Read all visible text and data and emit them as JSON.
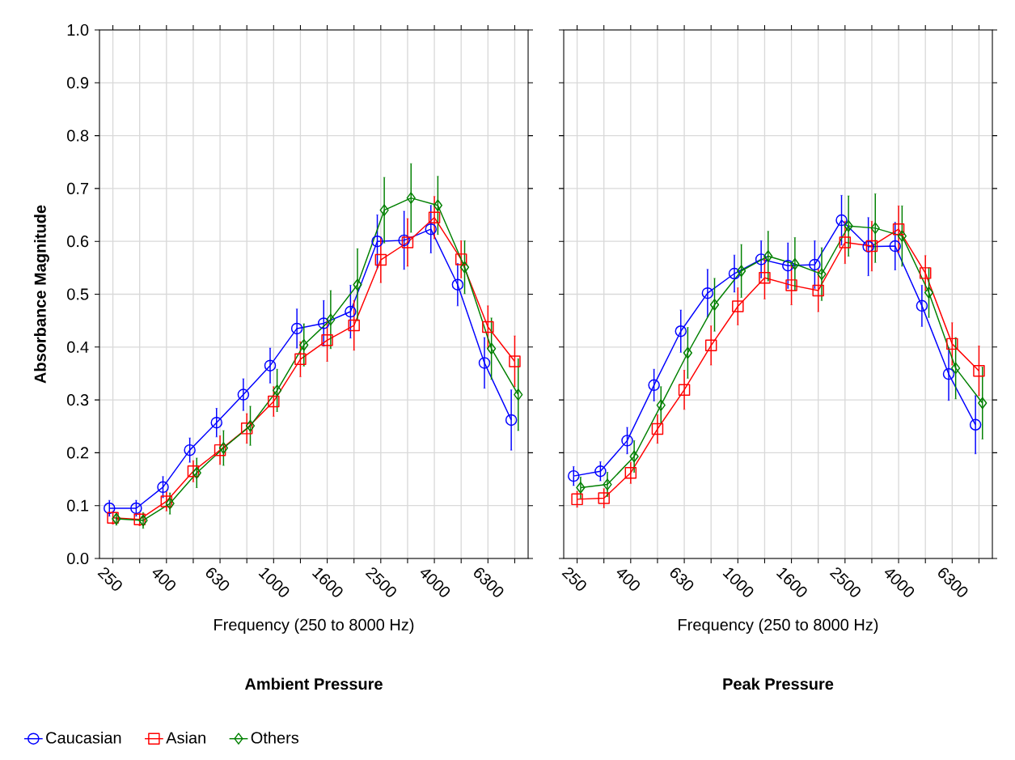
{
  "chart_data": [
    {
      "type": "line",
      "title": "**Ambient Pressure**",
      "xlabel": "Frequency (250 to 8000 Hz)",
      "ylabel": "Absorbance Magnitude",
      "categories": [
        "250",
        null,
        "400",
        null,
        "630",
        null,
        "1000",
        null,
        "1600",
        null,
        "2500",
        null,
        "4000",
        null,
        "6300",
        null
      ],
      "ylim": [
        0,
        1
      ],
      "yticks": [
        {
          "value": 0,
          "label": "0.0"
        },
        0.1,
        0.2,
        0.3,
        0.4,
        0.5,
        0.6,
        0.7,
        0.8,
        0.9,
        {
          "value": 1,
          "label": "1.0"
        }
      ],
      "grid": true,
      "legend": "bottom left",
      "line_style": "solid",
      "series": [
        {
          "name": "Caucasian",
          "color": "#0000ff",
          "marker": "circle",
          "values": [
            0.095,
            0.095,
            0.135,
            0.205,
            0.257,
            0.31,
            0.365,
            0.435,
            0.445,
            0.467,
            0.6,
            0.602,
            0.623,
            0.518,
            0.37,
            0.262
          ],
          "errors": [
            0.015,
            0.015,
            0.02,
            0.023,
            0.027,
            0.03,
            0.033,
            0.037,
            0.043,
            0.05,
            0.05,
            0.055,
            0.045,
            0.04,
            0.048,
            0.057
          ]
        },
        {
          "name": "Asian",
          "color": "#ff0000",
          "marker": "square",
          "values": [
            0.077,
            0.074,
            0.108,
            0.165,
            0.205,
            0.246,
            0.297,
            0.377,
            0.413,
            0.441,
            0.565,
            0.598,
            0.645,
            0.566,
            0.438,
            0.373
          ],
          "errors": [
            0.012,
            0.012,
            0.018,
            0.02,
            0.027,
            0.028,
            0.028,
            0.033,
            0.04,
            0.047,
            0.043,
            0.045,
            0.04,
            0.035,
            0.04,
            0.048
          ]
        },
        {
          "name": "Others",
          "color": "#008000",
          "marker": "diamond",
          "values": [
            0.075,
            0.072,
            0.104,
            0.162,
            0.209,
            0.251,
            0.318,
            0.404,
            0.452,
            0.518,
            0.659,
            0.682,
            0.668,
            0.551,
            0.397,
            0.31
          ],
          "errors": [
            0.012,
            0.015,
            0.02,
            0.028,
            0.033,
            0.037,
            0.04,
            0.04,
            0.055,
            0.068,
            0.062,
            0.065,
            0.055,
            0.05,
            0.058,
            0.068
          ]
        }
      ]
    },
    {
      "type": "line",
      "title": "**Peak Pressure**",
      "xlabel": "Frequency (250 to 8000 Hz)",
      "categories": [
        "250",
        null,
        "400",
        null,
        "630",
        null,
        "1000",
        null,
        "1600",
        null,
        "2500",
        null,
        "4000",
        null,
        "6300",
        null
      ],
      "ylim": [
        0,
        1
      ],
      "yticks": [
        0,
        0.1,
        0.2,
        0.3,
        0.4,
        0.5,
        0.6,
        0.7,
        0.8,
        0.9,
        1
      ],
      "grid": true,
      "tick_labels": "x",
      "line_style": "solid",
      "series": [
        {
          "color": "#0000ff",
          "marker": "circle",
          "values": [
            0.156,
            0.165,
            0.223,
            0.328,
            0.43,
            0.502,
            0.539,
            0.566,
            0.554,
            0.556,
            0.64,
            0.59,
            0.591,
            0.478,
            0.349,
            0.253
          ],
          "errors": [
            0.018,
            0.018,
            0.025,
            0.03,
            0.04,
            0.045,
            0.035,
            0.035,
            0.043,
            0.045,
            0.047,
            0.055,
            0.045,
            0.039,
            0.05,
            0.055
          ]
        },
        {
          "color": "#ff0000",
          "marker": "square",
          "values": [
            0.112,
            0.114,
            0.162,
            0.245,
            0.319,
            0.403,
            0.477,
            0.531,
            0.517,
            0.507,
            0.598,
            0.591,
            0.623,
            0.54,
            0.406,
            0.355
          ],
          "errors": [
            0.015,
            0.018,
            0.02,
            0.027,
            0.037,
            0.037,
            0.035,
            0.04,
            0.037,
            0.04,
            0.04,
            0.047,
            0.044,
            0.033,
            0.04,
            0.047
          ]
        },
        {
          "color": "#008000",
          "marker": "diamond",
          "values": [
            0.134,
            0.14,
            0.193,
            0.29,
            0.389,
            0.48,
            0.544,
            0.572,
            0.557,
            0.538,
            0.629,
            0.625,
            0.61,
            0.503,
            0.36,
            0.294
          ],
          "errors": [
            0.02,
            0.023,
            0.03,
            0.035,
            0.048,
            0.05,
            0.05,
            0.047,
            0.05,
            0.05,
            0.057,
            0.065,
            0.057,
            0.047,
            0.058,
            0.068
          ]
        }
      ]
    }
  ]
}
